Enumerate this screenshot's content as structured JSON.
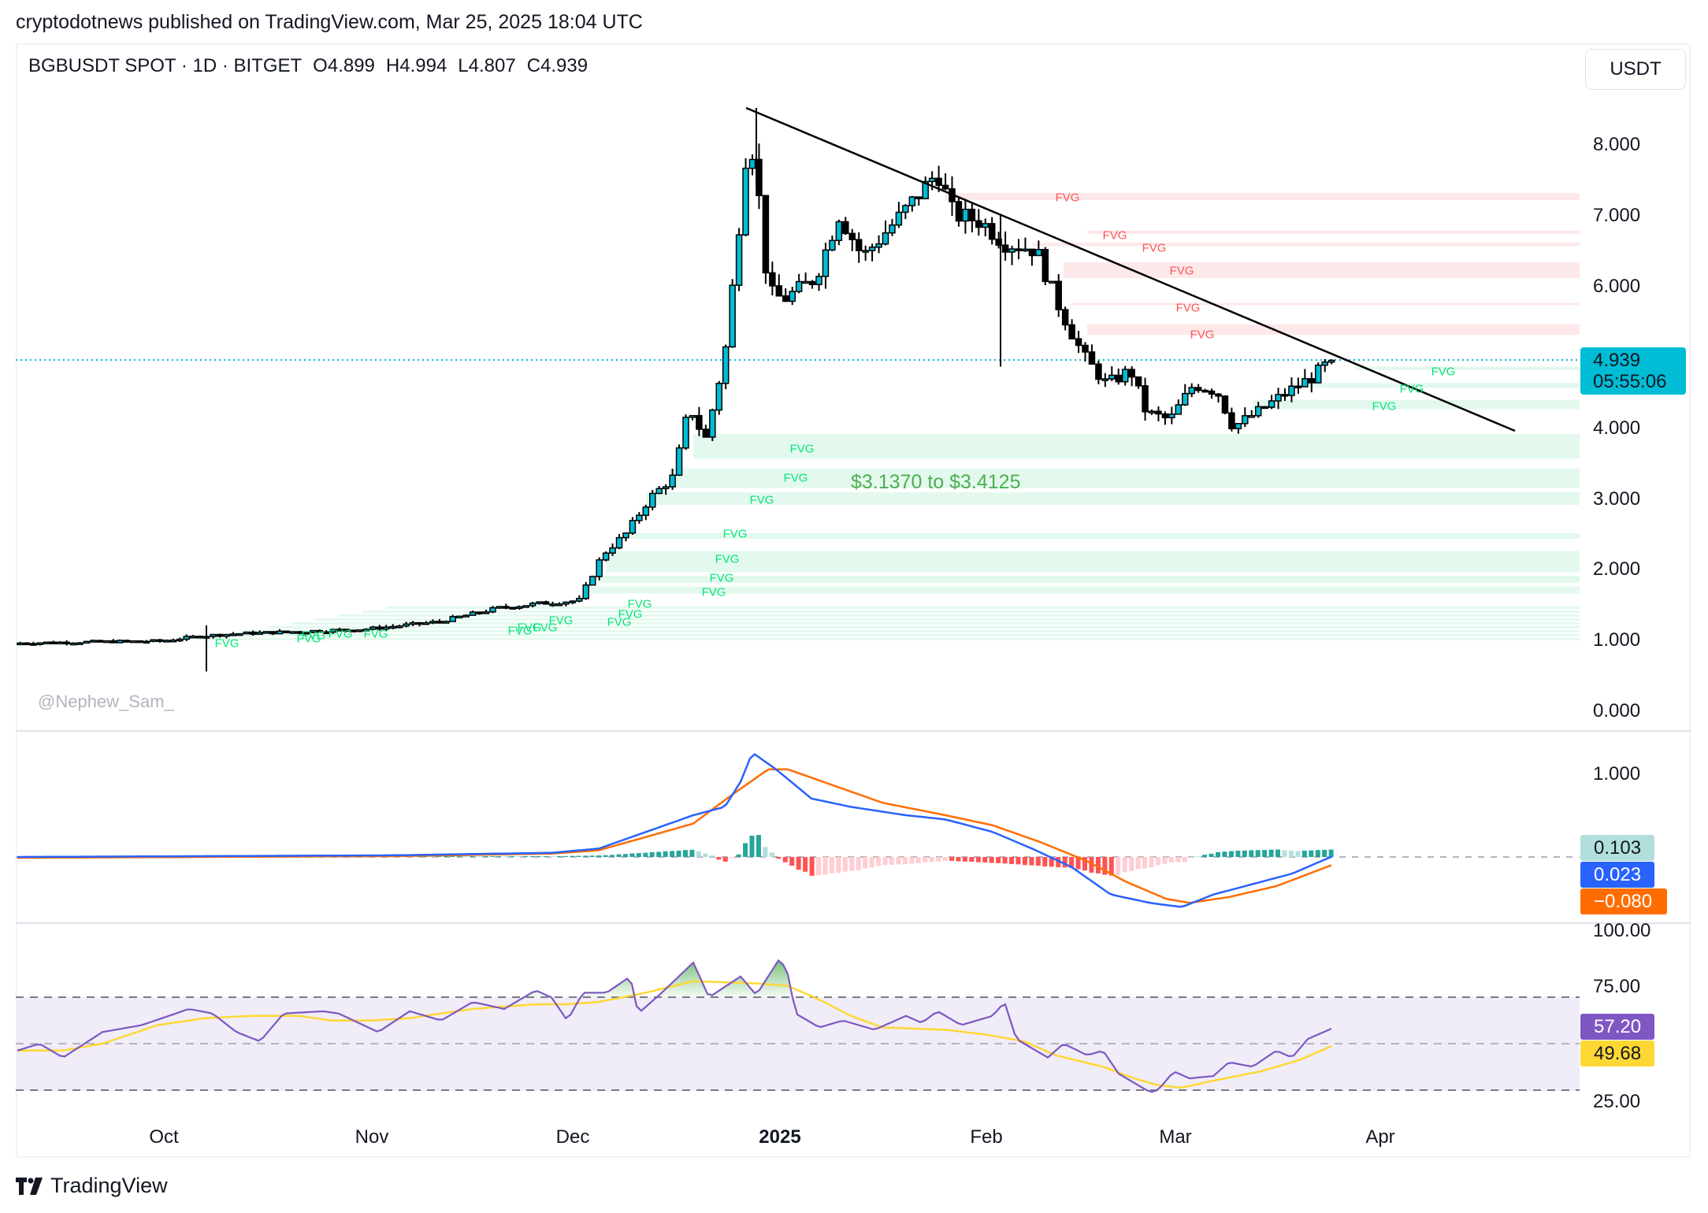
{
  "header": {
    "published_line": "cryptodotnews published on TradingView.com, Mar 25, 2025 18:04 UTC"
  },
  "legend": {
    "symbol": "BGBUSDT SPOT · 1D · BITGET",
    "open": "O4.899",
    "high": "H4.994",
    "low": "L4.807",
    "close": "C4.939"
  },
  "currency_button": "USDT",
  "price_axis": {
    "labels": [
      "8.000",
      "7.000",
      "6.000",
      "4.000",
      "3.000",
      "2.000",
      "1.000",
      "0.000"
    ],
    "current_price": "4.939",
    "countdown": "05:55:06"
  },
  "macd_axis": {
    "labels": [
      "1.000"
    ],
    "histogram_value": "0.103",
    "macd_value": "0.023",
    "signal_value": "−0.080"
  },
  "rsi_axis": {
    "labels": [
      "100.00",
      "75.00",
      "25.00"
    ],
    "rsi_value": "57.20",
    "rsi_ma_value": "49.68"
  },
  "time_axis": {
    "labels": [
      {
        "text": "Oct",
        "bold": false
      },
      {
        "text": "Nov",
        "bold": false
      },
      {
        "text": "Dec",
        "bold": false
      },
      {
        "text": "2025",
        "bold": true
      },
      {
        "text": "Feb",
        "bold": false
      },
      {
        "text": "Mar",
        "bold": false
      },
      {
        "text": "Apr",
        "bold": false
      }
    ]
  },
  "annotations": {
    "watermark": "@Nephew_Sam_",
    "range_note": "$3.1370 to $3.4125",
    "fvg_label": "FVG"
  },
  "footer": {
    "brand": "TradingView"
  },
  "colors": {
    "bull_body": "#00bcd4",
    "bear_body": "#000000",
    "fvg_bull_zone": "#e3f9ee",
    "fvg_bear_zone": "#fde8ea",
    "fvg_bull_text": "#00e676",
    "fvg_bear_text": "#ff5252",
    "macd_line": "#2962ff",
    "signal_line": "#ff6d00",
    "hist_pos_strong": "#26a69a",
    "hist_pos_weak": "#b2dfdb",
    "hist_neg_strong": "#ff5252",
    "hist_neg_weak": "#ffcdd2",
    "rsi_line": "#7e57c2",
    "rsi_ma": "#fdd835",
    "rsi_band": "#f0ecf8",
    "current_price_tag": "#00bcd4"
  },
  "chart_data": [
    {
      "type": "candlestick",
      "title": "BGBUSDT SPOT · 1D · BITGET",
      "ylabel": "USDT",
      "ylim": [
        0,
        8.5
      ],
      "x_ticks": [
        "Oct",
        "Nov",
        "Dec",
        "2025",
        "Feb",
        "Mar",
        "Apr"
      ],
      "last_bar": {
        "open": 4.899,
        "high": 4.994,
        "low": 4.807,
        "close": 4.939
      },
      "approx_closes_by_month_start": [
        {
          "date": "2024-09-15",
          "close": 0.95
        },
        {
          "date": "2024-10-01",
          "close": 1.0
        },
        {
          "date": "2024-11-01",
          "close": 1.15
        },
        {
          "date": "2024-12-01",
          "close": 1.9
        },
        {
          "date": "2024-12-15",
          "close": 3.3
        },
        {
          "date": "2024-12-27",
          "close": 8.2
        },
        {
          "date": "2025-01-01",
          "close": 5.9
        },
        {
          "date": "2025-01-24",
          "close": 7.6
        },
        {
          "date": "2025-02-01",
          "close": 6.5
        },
        {
          "date": "2025-02-20",
          "close": 4.6
        },
        {
          "date": "2025-03-01",
          "close": 4.0
        },
        {
          "date": "2025-03-10",
          "close": 3.9
        },
        {
          "date": "2025-03-25",
          "close": 4.939
        }
      ],
      "trendline": {
        "from": {
          "date": "2024-12-27",
          "price": 8.5
        },
        "to": {
          "date": "2025-04-17",
          "price": 3.95
        }
      },
      "fvg_bearish_zones": [
        [
          7.2,
          7.3
        ],
        [
          6.72,
          6.77
        ],
        [
          6.55,
          6.6
        ],
        [
          6.1,
          6.32
        ],
        [
          5.72,
          5.75
        ],
        [
          5.3,
          5.45
        ]
      ],
      "fvg_bullish_zones": [
        [
          4.8,
          4.85
        ],
        [
          4.55,
          4.62
        ],
        [
          4.25,
          4.38
        ],
        [
          3.55,
          3.9
        ],
        [
          3.137,
          3.4125
        ],
        [
          2.9,
          3.08
        ],
        [
          2.42,
          2.5
        ],
        [
          1.95,
          2.25
        ],
        [
          1.8,
          1.9
        ],
        [
          1.65,
          1.75
        ],
        [
          1.0,
          1.5
        ]
      ],
      "annotation": "$3.1370 to $3.4125",
      "current_price": 4.939
    },
    {
      "type": "line",
      "title": "MACD",
      "series": [
        {
          "name": "MACD",
          "last": 0.023,
          "peak": 1.25,
          "trough": -0.6
        },
        {
          "name": "Signal",
          "last": -0.08,
          "peak": 1.05,
          "trough": -0.55
        },
        {
          "name": "Histogram",
          "last": 0.103
        }
      ],
      "y_ticks": [
        "1.000"
      ]
    },
    {
      "type": "line",
      "title": "RSI",
      "series": [
        {
          "name": "RSI",
          "last": 57.2
        },
        {
          "name": "RSI MA",
          "last": 49.68
        }
      ],
      "y_ticks": [
        "100.00",
        "75.00",
        "25.00"
      ],
      "bands": {
        "upper": 70,
        "middle": 50,
        "lower": 30
      }
    }
  ]
}
